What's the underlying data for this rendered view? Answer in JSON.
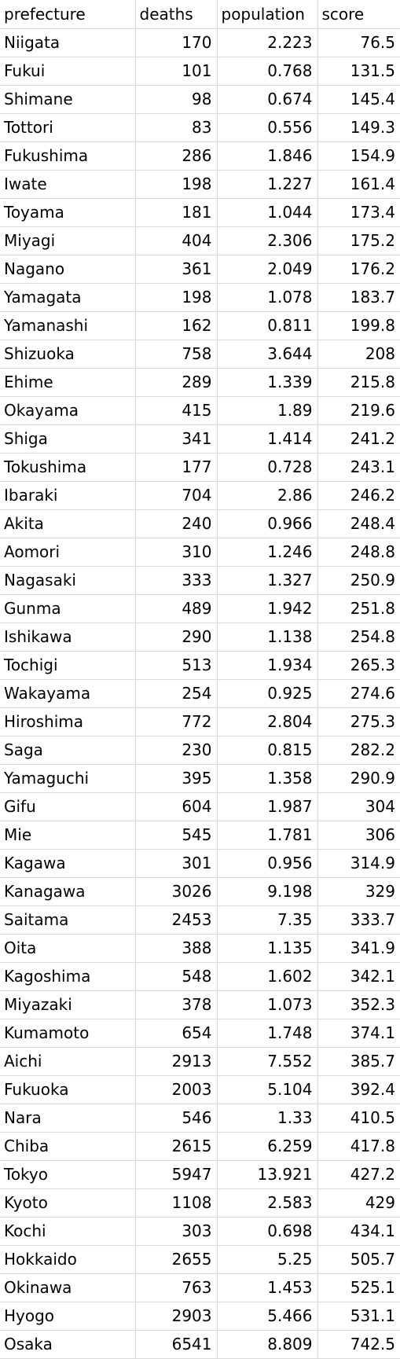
{
  "table": {
    "headers": [
      "prefecture",
      "deaths",
      "population",
      "score"
    ],
    "rows": [
      [
        "Niigata",
        "170",
        "2.223",
        "76.5"
      ],
      [
        "Fukui",
        "101",
        "0.768",
        "131.5"
      ],
      [
        "Shimane",
        "98",
        "0.674",
        "145.4"
      ],
      [
        "Tottori",
        "83",
        "0.556",
        "149.3"
      ],
      [
        "Fukushima",
        "286",
        "1.846",
        "154.9"
      ],
      [
        "Iwate",
        "198",
        "1.227",
        "161.4"
      ],
      [
        "Toyama",
        "181",
        "1.044",
        "173.4"
      ],
      [
        "Miyagi",
        "404",
        "2.306",
        "175.2"
      ],
      [
        "Nagano",
        "361",
        "2.049",
        "176.2"
      ],
      [
        "Yamagata",
        "198",
        "1.078",
        "183.7"
      ],
      [
        "Yamanashi",
        "162",
        "0.811",
        "199.8"
      ],
      [
        "Shizuoka",
        "758",
        "3.644",
        "208"
      ],
      [
        "Ehime",
        "289",
        "1.339",
        "215.8"
      ],
      [
        "Okayama",
        "415",
        "1.89",
        "219.6"
      ],
      [
        "Shiga",
        "341",
        "1.414",
        "241.2"
      ],
      [
        "Tokushima",
        "177",
        "0.728",
        "243.1"
      ],
      [
        "Ibaraki",
        "704",
        "2.86",
        "246.2"
      ],
      [
        "Akita",
        "240",
        "0.966",
        "248.4"
      ],
      [
        "Aomori",
        "310",
        "1.246",
        "248.8"
      ],
      [
        "Nagasaki",
        "333",
        "1.327",
        "250.9"
      ],
      [
        "Gunma",
        "489",
        "1.942",
        "251.8"
      ],
      [
        "Ishikawa",
        "290",
        "1.138",
        "254.8"
      ],
      [
        "Tochigi",
        "513",
        "1.934",
        "265.3"
      ],
      [
        "Wakayama",
        "254",
        "0.925",
        "274.6"
      ],
      [
        "Hiroshima",
        "772",
        "2.804",
        "275.3"
      ],
      [
        "Saga",
        "230",
        "0.815",
        "282.2"
      ],
      [
        "Yamaguchi",
        "395",
        "1.358",
        "290.9"
      ],
      [
        "Gifu",
        "604",
        "1.987",
        "304"
      ],
      [
        "Mie",
        "545",
        "1.781",
        "306"
      ],
      [
        "Kagawa",
        "301",
        "0.956",
        "314.9"
      ],
      [
        "Kanagawa",
        "3026",
        "9.198",
        "329"
      ],
      [
        "Saitama",
        "2453",
        "7.35",
        "333.7"
      ],
      [
        "Oita",
        "388",
        "1.135",
        "341.9"
      ],
      [
        "Kagoshima",
        "548",
        "1.602",
        "342.1"
      ],
      [
        "Miyazaki",
        "378",
        "1.073",
        "352.3"
      ],
      [
        "Kumamoto",
        "654",
        "1.748",
        "374.1"
      ],
      [
        "Aichi",
        "2913",
        "7.552",
        "385.7"
      ],
      [
        "Fukuoka",
        "2003",
        "5.104",
        "392.4"
      ],
      [
        "Nara",
        "546",
        "1.33",
        "410.5"
      ],
      [
        "Chiba",
        "2615",
        "6.259",
        "417.8"
      ],
      [
        "Tokyo",
        "5947",
        "13.921",
        "427.2"
      ],
      [
        "Kyoto",
        "1108",
        "2.583",
        "429"
      ],
      [
        "Kochi",
        "303",
        "0.698",
        "434.1"
      ],
      [
        "Hokkaido",
        "2655",
        "5.25",
        "505.7"
      ],
      [
        "Okinawa",
        "763",
        "1.453",
        "525.1"
      ],
      [
        "Hyogo",
        "2903",
        "5.466",
        "531.1"
      ],
      [
        "Osaka",
        "6541",
        "8.809",
        "742.5"
      ]
    ]
  }
}
